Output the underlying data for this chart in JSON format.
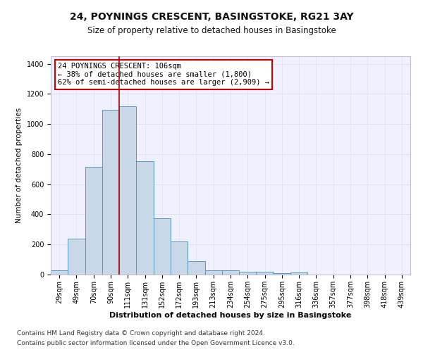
{
  "title1": "24, POYNINGS CRESCENT, BASINGSTOKE, RG21 3AY",
  "title2": "Size of property relative to detached houses in Basingstoke",
  "xlabel": "Distribution of detached houses by size in Basingstoke",
  "ylabel": "Number of detached properties",
  "categories": [
    "29sqm",
    "49sqm",
    "70sqm",
    "90sqm",
    "111sqm",
    "131sqm",
    "152sqm",
    "172sqm",
    "193sqm",
    "213sqm",
    "234sqm",
    "254sqm",
    "275sqm",
    "295sqm",
    "316sqm",
    "336sqm",
    "357sqm",
    "377sqm",
    "398sqm",
    "418sqm",
    "439sqm"
  ],
  "values": [
    28,
    237,
    715,
    1095,
    1120,
    755,
    375,
    220,
    90,
    28,
    30,
    20,
    20,
    8,
    13,
    0,
    0,
    0,
    0,
    0,
    0
  ],
  "bar_color": "#c8d8e8",
  "bar_edge_color": "#5599bb",
  "vline_color": "#aa0000",
  "annotation_text": "24 POYNINGS CRESCENT: 106sqm\n← 38% of detached houses are smaller (1,800)\n62% of semi-detached houses are larger (2,909) →",
  "annotation_box_color": "#ffffff",
  "annotation_box_edge_color": "#cc0000",
  "ylim": [
    0,
    1450
  ],
  "yticks": [
    0,
    200,
    400,
    600,
    800,
    1000,
    1200,
    1400
  ],
  "grid_color": "#dde0ee",
  "footnote1": "Contains HM Land Registry data © Crown copyright and database right 2024.",
  "footnote2": "Contains public sector information licensed under the Open Government Licence v3.0.",
  "bg_color": "#f0f0ff",
  "title1_fontsize": 10,
  "title2_fontsize": 8.5,
  "xlabel_fontsize": 8,
  "ylabel_fontsize": 7.5,
  "tick_fontsize": 7,
  "annotation_fontsize": 7.5,
  "footnote_fontsize": 6.5
}
